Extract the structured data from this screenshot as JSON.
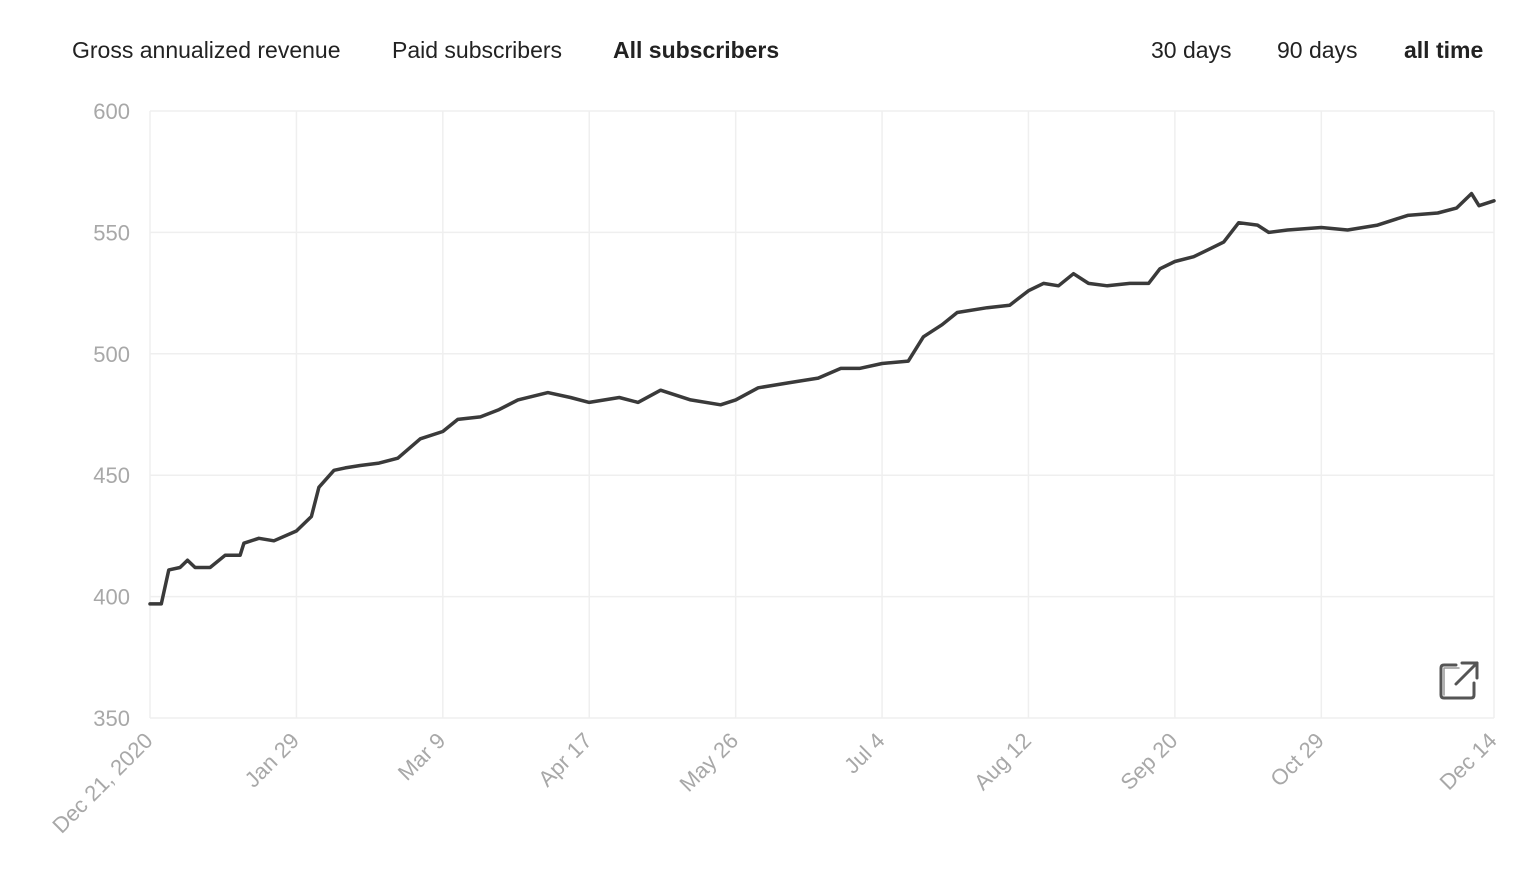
{
  "metric_tabs": [
    {
      "label": "Gross annualized revenue",
      "selected": false
    },
    {
      "label": "Paid subscribers",
      "selected": false
    },
    {
      "label": "All subscribers",
      "selected": true
    }
  ],
  "range_tabs": [
    {
      "label": "30 days",
      "selected": false
    },
    {
      "label": "90 days",
      "selected": false
    },
    {
      "label": "all time",
      "selected": true
    }
  ],
  "chart_data": {
    "type": "line",
    "grid": true,
    "x": [
      "2020-12-21",
      "2020-12-24",
      "2020-12-26",
      "2020-12-29",
      "2020-12-31",
      "2021-01-02",
      "2021-01-06",
      "2021-01-10",
      "2021-01-14",
      "2021-01-15",
      "2021-01-19",
      "2021-01-23",
      "2021-01-29",
      "2021-02-02",
      "2021-02-04",
      "2021-02-08",
      "2021-02-11",
      "2021-02-15",
      "2021-02-20",
      "2021-02-25",
      "2021-03-03",
      "2021-03-09",
      "2021-03-13",
      "2021-03-19",
      "2021-03-24",
      "2021-03-29",
      "2021-04-06",
      "2021-04-12",
      "2021-04-17",
      "2021-04-25",
      "2021-04-30",
      "2021-05-06",
      "2021-05-14",
      "2021-05-22",
      "2021-05-26",
      "2021-06-01",
      "2021-06-09",
      "2021-06-17",
      "2021-06-23",
      "2021-06-28",
      "2021-07-04",
      "2021-07-11",
      "2021-07-15",
      "2021-07-20",
      "2021-07-24",
      "2021-08-01",
      "2021-08-07",
      "2021-08-12",
      "2021-08-16",
      "2021-08-20",
      "2021-08-24",
      "2021-08-28",
      "2021-09-02",
      "2021-09-08",
      "2021-09-13",
      "2021-09-16",
      "2021-09-20",
      "2021-09-25",
      "2021-09-29",
      "2021-10-03",
      "2021-10-07",
      "2021-10-12",
      "2021-10-15",
      "2021-10-20",
      "2021-10-29",
      "2021-11-05",
      "2021-11-13",
      "2021-11-21",
      "2021-11-29",
      "2021-12-04",
      "2021-12-08",
      "2021-12-10",
      "2021-12-14"
    ],
    "series": [
      {
        "name": "All subscribers",
        "color": "#3a3a3a",
        "values": [
          397,
          397,
          411,
          412,
          415,
          412,
          412,
          417,
          417,
          422,
          424,
          423,
          427,
          433,
          445,
          452,
          453,
          454,
          455,
          457,
          465,
          468,
          473,
          474,
          477,
          481,
          484,
          482,
          480,
          482,
          480,
          485,
          481,
          479,
          481,
          486,
          488,
          490,
          494,
          494,
          496,
          497,
          507,
          512,
          517,
          519,
          520,
          526,
          529,
          528,
          533,
          529,
          528,
          529,
          529,
          535,
          538,
          540,
          543,
          546,
          554,
          553,
          550,
          551,
          552,
          551,
          553,
          557,
          558,
          560,
          566,
          561,
          563
        ]
      }
    ],
    "xlim": [
      "2020-12-21",
      "2021-12-14"
    ],
    "xticks": [
      {
        "value": "2020-12-21",
        "label": "Dec 21, 2020"
      },
      {
        "value": "2021-01-29",
        "label": "Jan 29"
      },
      {
        "value": "2021-03-09",
        "label": "Mar 9"
      },
      {
        "value": "2021-04-17",
        "label": "Apr 17"
      },
      {
        "value": "2021-05-26",
        "label": "May 26"
      },
      {
        "value": "2021-07-04",
        "label": "Jul 4"
      },
      {
        "value": "2021-08-12",
        "label": "Aug 12"
      },
      {
        "value": "2021-09-20",
        "label": "Sep 20"
      },
      {
        "value": "2021-10-29",
        "label": "Oct 29"
      },
      {
        "value": "2021-12-14",
        "label": "Dec 14"
      }
    ],
    "ylim": [
      350,
      600
    ],
    "yticks": [
      350,
      400,
      450,
      500,
      550,
      600
    ]
  }
}
